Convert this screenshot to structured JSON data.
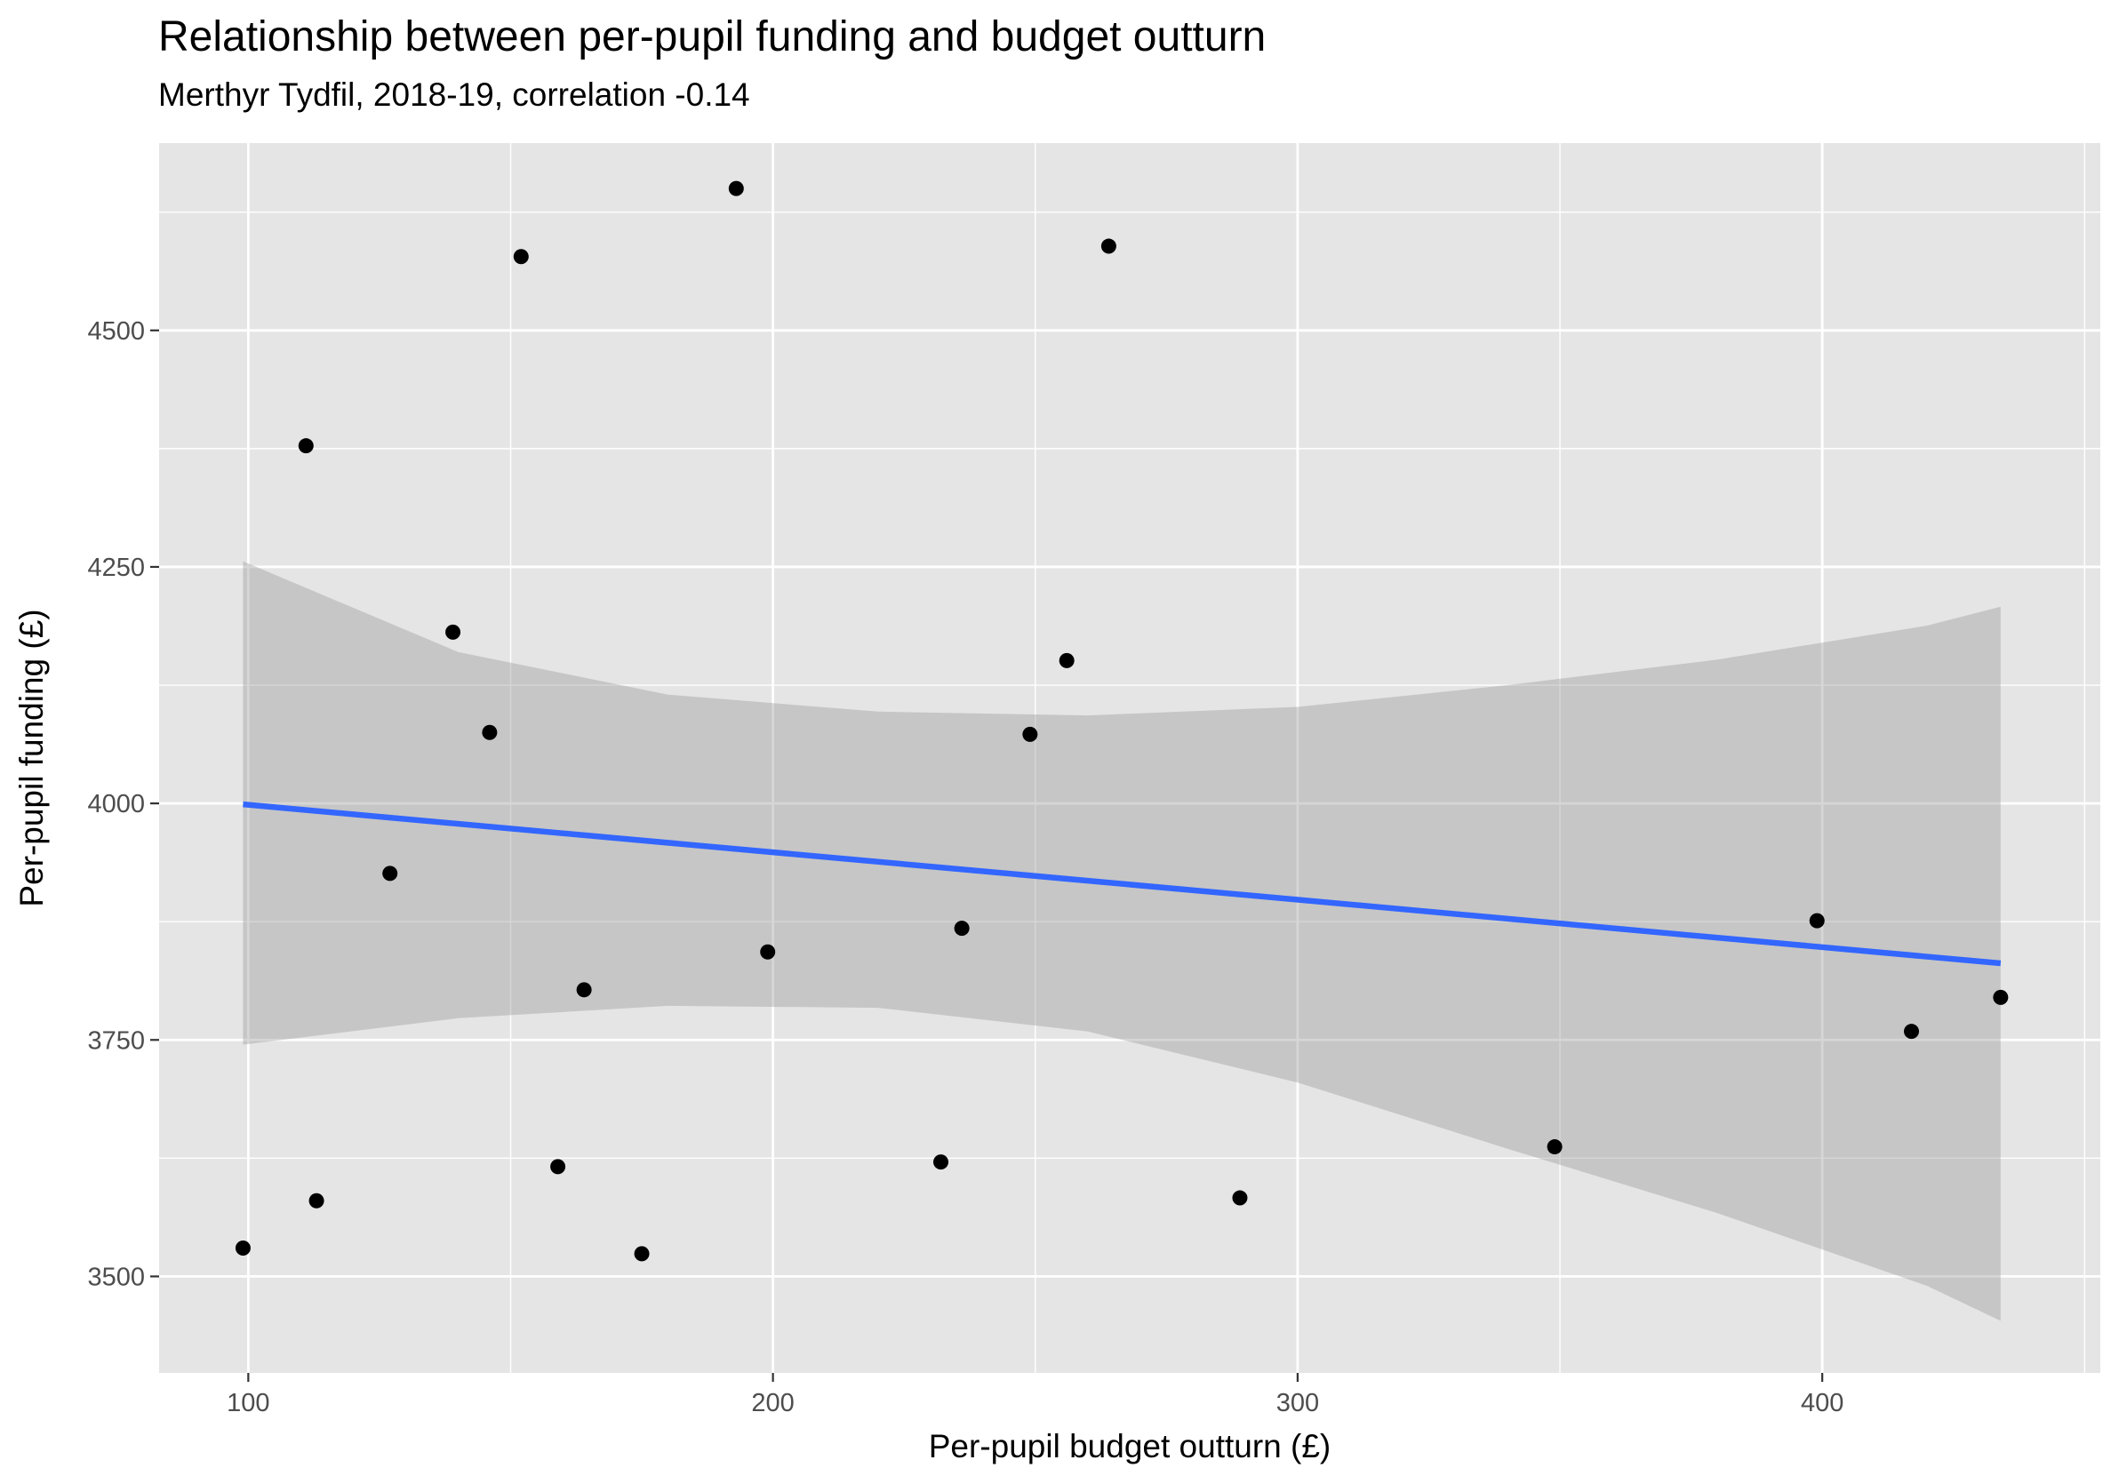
{
  "chart_data": {
    "type": "scatter",
    "title": "Relationship between per-pupil funding and budget outturn",
    "subtitle": "Merthyr Tydfil, 2018-19, correlation -0.14",
    "xlabel": "Per-pupil budget outturn (£)",
    "ylabel": "Per-pupil funding (£)",
    "xlim": [
      83,
      453
    ],
    "ylim": [
      3398,
      4698
    ],
    "x_ticks": [
      100,
      200,
      300,
      400
    ],
    "y_ticks": [
      3500,
      3750,
      4000,
      4250,
      4500
    ],
    "x_tick_labels": [
      "100",
      "200",
      "300",
      "400"
    ],
    "y_tick_labels": [
      "3500",
      "3750",
      "4000",
      "4250",
      "4500"
    ],
    "grid": true,
    "points": [
      {
        "x": 99,
        "y": 3530
      },
      {
        "x": 111,
        "y": 4378
      },
      {
        "x": 113,
        "y": 3580
      },
      {
        "x": 127,
        "y": 3926
      },
      {
        "x": 139,
        "y": 4181
      },
      {
        "x": 146,
        "y": 4075
      },
      {
        "x": 152,
        "y": 4578
      },
      {
        "x": 159,
        "y": 3616
      },
      {
        "x": 164,
        "y": 3803
      },
      {
        "x": 175,
        "y": 3524
      },
      {
        "x": 193,
        "y": 4650
      },
      {
        "x": 199,
        "y": 3843
      },
      {
        "x": 232,
        "y": 3621
      },
      {
        "x": 236,
        "y": 3868
      },
      {
        "x": 249,
        "y": 4073
      },
      {
        "x": 256,
        "y": 4151
      },
      {
        "x": 264,
        "y": 4589
      },
      {
        "x": 289,
        "y": 3583
      },
      {
        "x": 349,
        "y": 3637
      },
      {
        "x": 399,
        "y": 3876
      },
      {
        "x": 417,
        "y": 3759
      },
      {
        "x": 434,
        "y": 3795
      }
    ],
    "trend_line": {
      "x": [
        99,
        434
      ],
      "y": [
        3999,
        3831
      ],
      "color": "#3366ff"
    },
    "confidence_band": {
      "x": [
        99,
        140,
        180,
        220,
        260,
        300,
        340,
        380,
        420,
        434
      ],
      "upper": [
        4256,
        4160,
        4115,
        4097,
        4093,
        4102,
        4125,
        4152,
        4188,
        4208
      ],
      "lower": [
        3745,
        3773,
        3786,
        3784,
        3759,
        3705,
        3635,
        3567,
        3490,
        3453
      ],
      "color": "#999999"
    },
    "colors": {
      "panel_background": "#e5e5e5",
      "grid": "#ffffff",
      "point": "#000000"
    }
  }
}
